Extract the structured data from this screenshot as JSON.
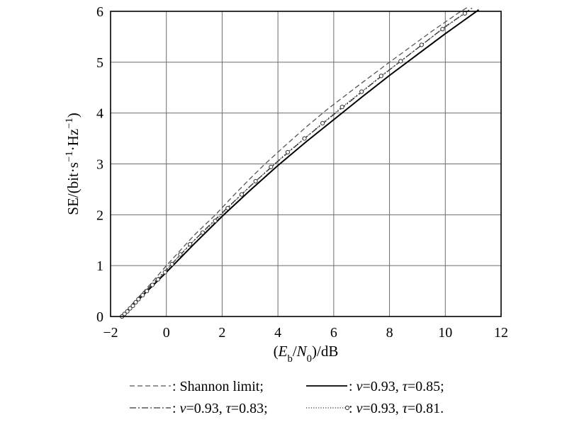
{
  "chart_data": {
    "type": "line",
    "xlabel": "(E_b/N_0)/dB",
    "ylabel": "SE/(bit·s^−1·Hz^−1)",
    "xlim": [
      -2,
      12
    ],
    "ylim": [
      0,
      6
    ],
    "xticks": [
      -2,
      0,
      2,
      4,
      6,
      8,
      10,
      12
    ],
    "yticks": [
      0,
      1,
      2,
      3,
      4,
      5,
      6
    ],
    "xtick_labels": [
      "−2",
      "0",
      "2",
      "4",
      "6",
      "8",
      "10",
      "12"
    ],
    "ytick_labels": [
      "0",
      "1",
      "2",
      "3",
      "4",
      "5",
      "6"
    ],
    "grid": true,
    "legend_position": "bottom",
    "series": [
      {
        "name": ": Shannon limit;",
        "style": "dashed",
        "color": "#555555",
        "x": [
          -1.59,
          -1.2,
          -0.6,
          0.0,
          0.5,
          1.0,
          1.76,
          2.5,
          3.0,
          3.5,
          4.26,
          5.0,
          5.74,
          6.5,
          7.0,
          8.0,
          8.5,
          9.0,
          9.5,
          10.0,
          10.5,
          10.8
        ],
        "y": [
          0.0,
          0.26,
          0.62,
          1.0,
          1.3,
          1.6,
          2.0,
          2.43,
          2.71,
          2.98,
          3.36,
          3.72,
          4.06,
          4.38,
          4.59,
          5.0,
          5.2,
          5.4,
          5.6,
          5.79,
          5.98,
          6.08
        ]
      },
      {
        "name": ": v=0.93, τ=0.85;",
        "style": "solid",
        "color": "#000000",
        "x": [
          -1.59,
          -1.0,
          0.0,
          1.0,
          2.0,
          3.0,
          4.0,
          5.0,
          6.0,
          7.0,
          8.0,
          9.0,
          10.0,
          11.2
        ],
        "y": [
          0.0,
          0.33,
          0.87,
          1.43,
          1.97,
          2.48,
          2.97,
          3.43,
          3.87,
          4.31,
          4.74,
          5.15,
          5.56,
          6.03
        ]
      },
      {
        "name": ": v=0.93, τ=0.83;",
        "style": "dashdot",
        "color": "#333333",
        "x": [
          -1.59,
          -1.0,
          0.0,
          1.0,
          2.0,
          3.0,
          4.0,
          5.0,
          6.0,
          7.0,
          8.0,
          9.0,
          10.0,
          11.0
        ],
        "y": [
          0.0,
          0.36,
          0.92,
          1.5,
          2.04,
          2.56,
          3.05,
          3.52,
          3.97,
          4.41,
          4.85,
          5.27,
          5.7,
          6.08
        ]
      },
      {
        "name": ": v=0.93, τ=0.81.",
        "style": "dotted-circle",
        "color": "#333333",
        "x": [
          -1.59,
          -1.5,
          -1.4,
          -1.3,
          -1.2,
          -1.1,
          -1.0,
          -0.85,
          -0.7,
          -0.5,
          -0.3,
          -0.05,
          0.2,
          0.5,
          0.85,
          1.3,
          1.75,
          2.2,
          2.7,
          3.2,
          3.75,
          4.35,
          4.95,
          5.6,
          6.3,
          7.0,
          7.7,
          8.4,
          9.15,
          9.9,
          10.7
        ],
        "y": [
          0.0,
          0.05,
          0.1,
          0.16,
          0.21,
          0.28,
          0.34,
          0.42,
          0.5,
          0.62,
          0.73,
          0.87,
          1.03,
          1.22,
          1.42,
          1.65,
          1.88,
          2.13,
          2.4,
          2.66,
          2.94,
          3.23,
          3.5,
          3.8,
          4.12,
          4.42,
          4.73,
          5.02,
          5.34,
          5.65,
          5.96
        ]
      }
    ]
  }
}
